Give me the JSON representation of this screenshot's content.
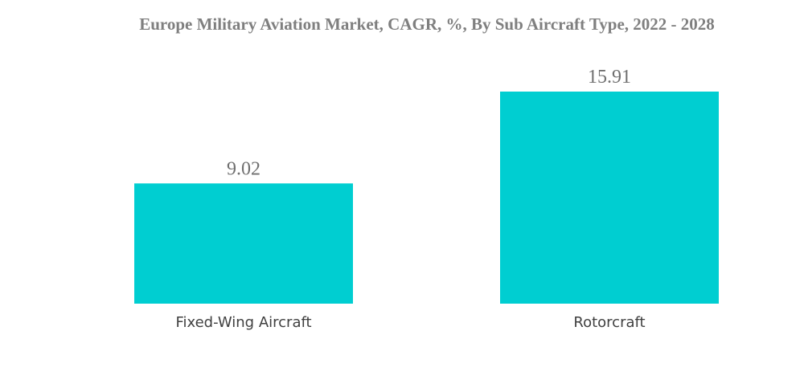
{
  "chart_data": {
    "type": "bar",
    "title": "Europe Military Aviation Market, CAGR, %, By Sub Aircraft Type, 2022 - 2028",
    "categories": [
      "Fixed-Wing Aircraft",
      "Rotorcraft"
    ],
    "values": [
      9.02,
      15.91
    ],
    "data_labels": [
      "9.02",
      "15.91"
    ],
    "xlabel": "",
    "ylabel": "",
    "ylim": [
      0,
      15.91
    ],
    "grid": false,
    "legend": "none",
    "bar_color": "#00ced1"
  }
}
